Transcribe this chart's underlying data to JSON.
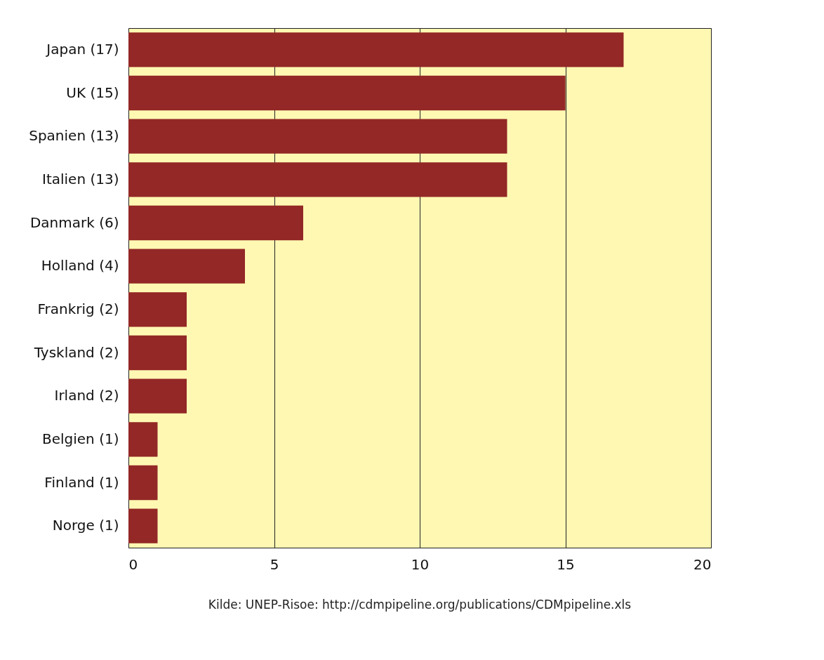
{
  "chart_data": {
    "type": "bar",
    "orientation": "horizontal",
    "categories": [
      "Japan (17)",
      "UK (15)",
      "Spanien (13)",
      "Italien (13)",
      "Danmark (6)",
      "Holland (4)",
      "Frankrig (2)",
      "Tyskland (2)",
      "Irland (2)",
      "Belgien (1)",
      "Finland (1)",
      "Norge (1)"
    ],
    "values": [
      17,
      15,
      13,
      13,
      6,
      4,
      2,
      2,
      2,
      1,
      1,
      1
    ],
    "color": "#932826",
    "xlim": [
      0,
      20
    ],
    "xticks": [
      0,
      5,
      10,
      15,
      20
    ],
    "grid": "x",
    "annotations": [
      "Kilde: UNEP-Risoe: http://cdmpipeline.org/publications/CDMpipeline.xls"
    ]
  }
}
